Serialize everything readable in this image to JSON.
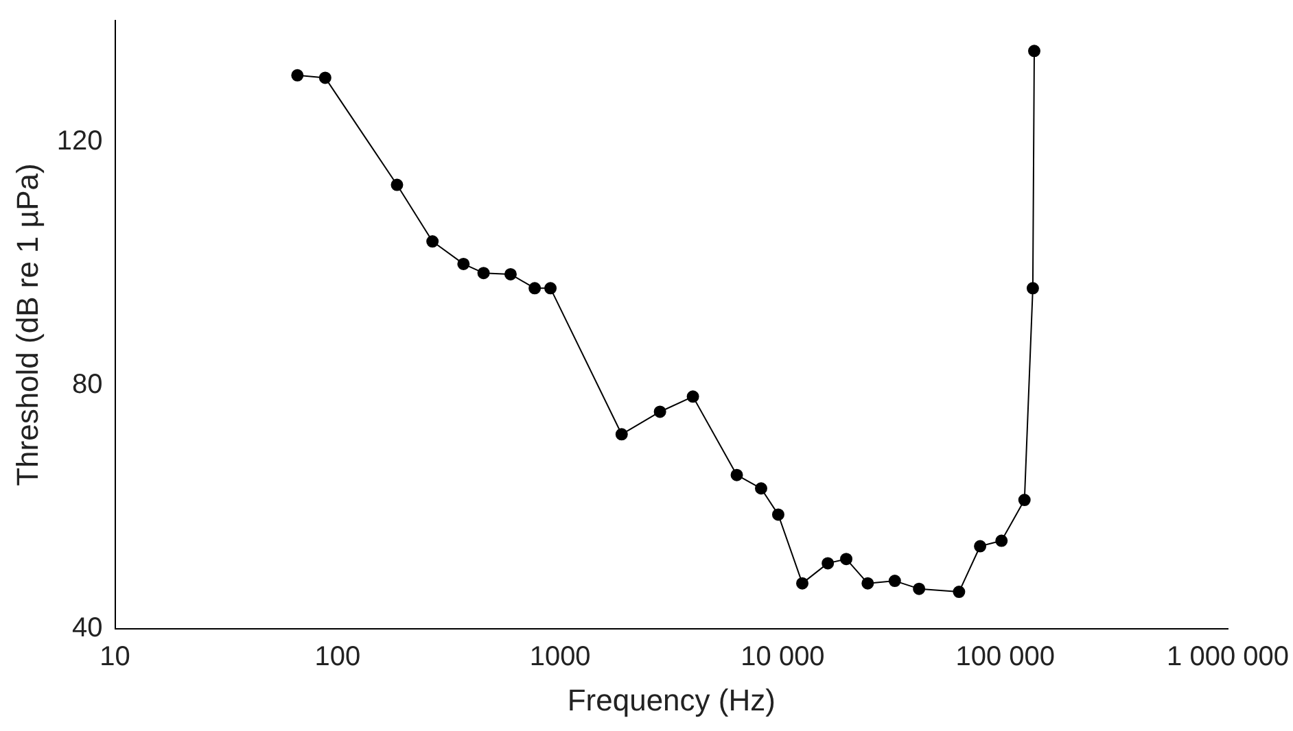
{
  "chart_data": {
    "type": "line",
    "xlabel": "Frequency (Hz)",
    "ylabel": "Threshold (dB re 1 µPa)",
    "log": "x",
    "xlim": [
      10,
      1000000
    ],
    "xticks": [
      10,
      100,
      1000,
      {
        "value": 10000,
        "label": "10 000"
      },
      {
        "value": 100000,
        "label": "100 000"
      },
      {
        "value": 1000000,
        "label": "1 000 000"
      }
    ],
    "ylim": [
      40,
      140
    ],
    "yticks": [
      40,
      80,
      120
    ],
    "grid": false,
    "legend": false,
    "marker": "circle",
    "line_style": "solid",
    "x": [
      66,
      88,
      185,
      267,
      368,
      453,
      599,
      769,
      905,
      1890,
      2810,
      3950,
      6220,
      8000,
      9550,
      12250,
      15950,
      19300,
      24100,
      31900,
      41000,
      62000,
      77100,
      96200,
      122000,
      133000,
      135000
    ],
    "series": [
      {
        "color": "#000000",
        "values": [
          131,
          130.6,
          113,
          103.7,
          100,
          98.5,
          98.3,
          96,
          96,
          72,
          75.7,
          78.2,
          65.3,
          63.1,
          58.8,
          47.5,
          50.8,
          51.5,
          47.5,
          47.9,
          46.6,
          46.1,
          53.6,
          54.5,
          61.2,
          96,
          135
        ]
      }
    ]
  }
}
